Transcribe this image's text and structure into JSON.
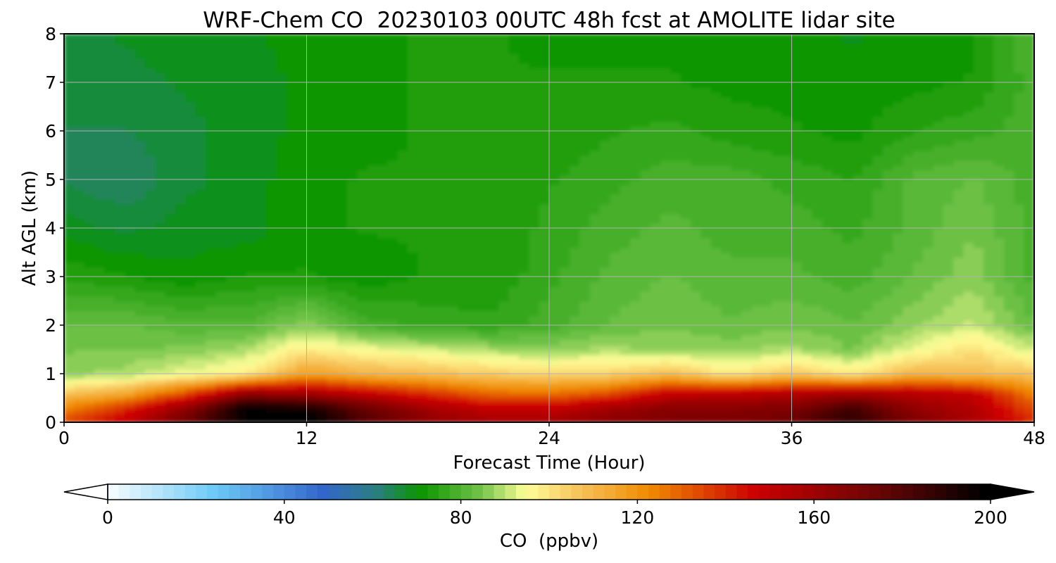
{
  "chart_data": {
    "type": "heatmap",
    "title": "WRF-Chem CO  20230103 00UTC 48h fcst at AMOLITE lidar site",
    "xlabel": "Forecast Time (Hour)",
    "ylabel": "Alt AGL (km)",
    "xlim": [
      0,
      48
    ],
    "ylim": [
      0,
      8
    ],
    "x_ticks": [
      0,
      12,
      24,
      36,
      48
    ],
    "y_ticks": [
      0,
      1,
      2,
      3,
      4,
      5,
      6,
      7,
      8
    ],
    "grid": true,
    "z_times": [
      0,
      3,
      6,
      9,
      12,
      15,
      18,
      21,
      24,
      27,
      30,
      33,
      36,
      39,
      42,
      45,
      48
    ],
    "z_altitudes": [
      0,
      0.3,
      0.6,
      1.0,
      1.5,
      2.0,
      3.0,
      4.0,
      5.0,
      6.0,
      7.0,
      8.0
    ],
    "z_values": [
      [
        135,
        150,
        175,
        200,
        205,
        180,
        165,
        160,
        160,
        168,
        170,
        170,
        175,
        190,
        170,
        158,
        140
      ],
      [
        125,
        140,
        165,
        200,
        195,
        175,
        160,
        150,
        150,
        160,
        168,
        168,
        170,
        185,
        165,
        155,
        135
      ],
      [
        108,
        115,
        135,
        165,
        160,
        150,
        140,
        130,
        128,
        135,
        150,
        152,
        155,
        160,
        155,
        150,
        125
      ],
      [
        88,
        90,
        95,
        100,
        118,
        112,
        110,
        106,
        104,
        105,
        110,
        100,
        108,
        100,
        112,
        110,
        108
      ],
      [
        86,
        86,
        87,
        90,
        100,
        96,
        93,
        90,
        88,
        90,
        88,
        88,
        90,
        86,
        95,
        102,
        92
      ],
      [
        84,
        84,
        82,
        82,
        88,
        80,
        78,
        77,
        80,
        84,
        86,
        84,
        86,
        84,
        88,
        92,
        84
      ],
      [
        76,
        74,
        72,
        74,
        74,
        72,
        74,
        74,
        78,
        82,
        84,
        82,
        82,
        80,
        84,
        88,
        80
      ],
      [
        70,
        68,
        70,
        70,
        73,
        74,
        74,
        74,
        77,
        80,
        82,
        80,
        80,
        78,
        82,
        86,
        80
      ],
      [
        66,
        64,
        68,
        70,
        73,
        74,
        74,
        74,
        76,
        78,
        80,
        80,
        78,
        76,
        82,
        84,
        80
      ],
      [
        66,
        66,
        68,
        70,
        72,
        73,
        74,
        74,
        74,
        76,
        77,
        75,
        74,
        73,
        76,
        78,
        80
      ],
      [
        68,
        68,
        69,
        70,
        72,
        73,
        74,
        74,
        74,
        74,
        74,
        73,
        73,
        72,
        73,
        74,
        80
      ],
      [
        68,
        69,
        70,
        71,
        72,
        73,
        74,
        74,
        73,
        73,
        73,
        72,
        72,
        71,
        72,
        73,
        82
      ]
    ],
    "colorbar": {
      "label": "CO  (ppbv)",
      "min": 0,
      "max": 200,
      "ticks": [
        0,
        40,
        80,
        120,
        160,
        200
      ],
      "extend": "both",
      "colormap_stops": [
        {
          "v": 0,
          "c": "#ffffff"
        },
        {
          "v": 25,
          "c": "#6ecbf7"
        },
        {
          "v": 50,
          "c": "#3366cc"
        },
        {
          "v": 62,
          "c": "#2b7f80"
        },
        {
          "v": 72,
          "c": "#0a9400"
        },
        {
          "v": 86,
          "c": "#74c44a"
        },
        {
          "v": 96,
          "c": "#ffff99"
        },
        {
          "v": 108,
          "c": "#f7c25a"
        },
        {
          "v": 124,
          "c": "#f08a00"
        },
        {
          "v": 148,
          "c": "#cc0000"
        },
        {
          "v": 175,
          "c": "#6d0505"
        },
        {
          "v": 200,
          "c": "#000000"
        }
      ]
    }
  }
}
